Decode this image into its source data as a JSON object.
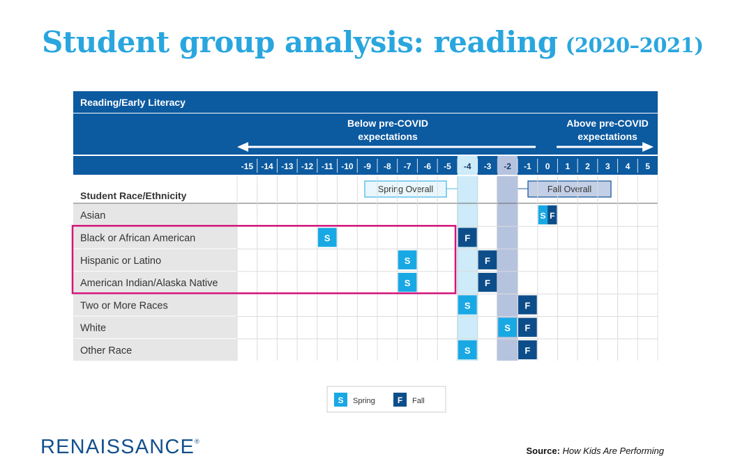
{
  "page": {
    "title_main": "Student group analysis: reading",
    "title_years": "(2020–2021)",
    "logo_text": "RENAISSANCE",
    "logo_mark": "®",
    "source_label": "Source:",
    "source_text": "How Kids Are Performing"
  },
  "chart_data": {
    "type": "table",
    "title": "Reading/Early Literacy",
    "row_header": "Student Race/Ethnicity",
    "left_label": "Below pre-COVID\nexpectations",
    "right_label": "Above pre-COVID\nexpectations",
    "x_ticks": [
      -15,
      -14,
      -13,
      -12,
      -11,
      -10,
      -9,
      -8,
      -7,
      -6,
      -5,
      -4,
      -3,
      -2,
      -1,
      0,
      1,
      2,
      3,
      4,
      5
    ],
    "overall": [
      {
        "name": "Spring Overall",
        "value": -4,
        "color": "#cdebf8"
      },
      {
        "name": "Fall Overall",
        "value": -2,
        "color": "#b6c3df"
      }
    ],
    "legend": [
      {
        "key": "spring",
        "letter": "S",
        "label": "Spring",
        "color": "#18a8e4"
      },
      {
        "key": "fall",
        "letter": "F",
        "label": "Fall",
        "color": "#0d4e8a"
      }
    ],
    "rows": [
      {
        "group": "Asian",
        "spring": 0,
        "fall": 0
      },
      {
        "group": "Black or African American",
        "spring": -11,
        "fall": -4
      },
      {
        "group": "Hispanic or Latino",
        "spring": -7,
        "fall": -3
      },
      {
        "group": "American Indian/Alaska Native",
        "spring": -7,
        "fall": -3
      },
      {
        "group": "Two or More Races",
        "spring": -4,
        "fall": -1
      },
      {
        "group": "White",
        "spring": -2,
        "fall": -1
      },
      {
        "group": "Other Race",
        "spring": -4,
        "fall": -1
      }
    ],
    "highlighted_rows": [
      1,
      3
    ],
    "colors": {
      "header": "#0c5aa0",
      "highlight": "#d4147a",
      "label_bg": "#e6e6e6"
    }
  }
}
